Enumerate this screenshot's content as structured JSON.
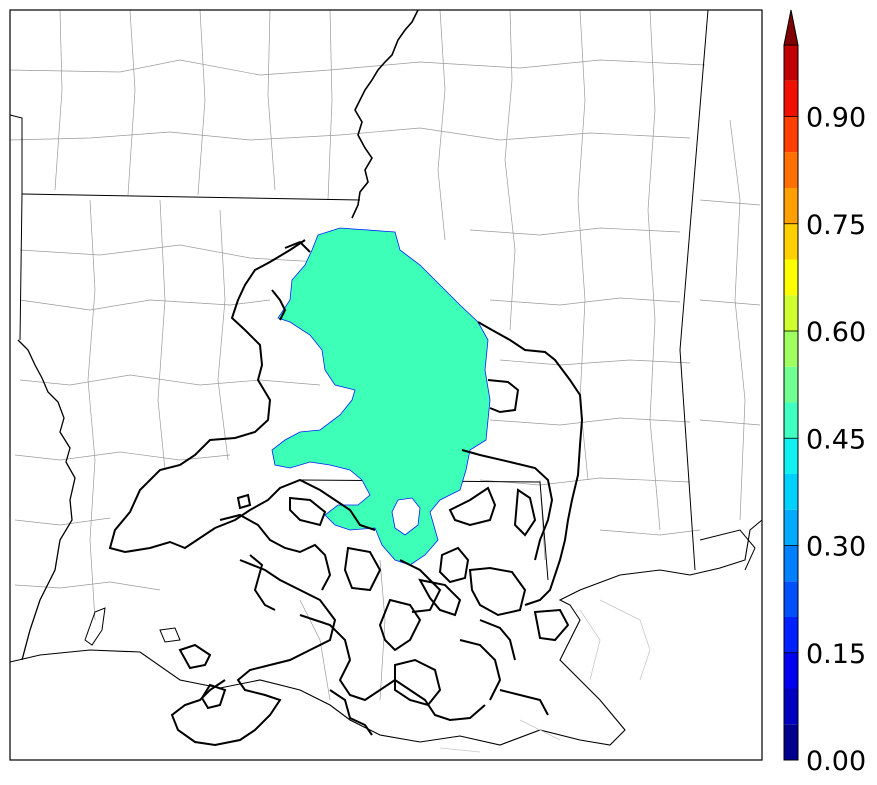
{
  "map": {
    "type": "probability-map",
    "region": "Louisiana / Mississippi",
    "fill_color": "#3dffb8",
    "contour_color": "#000000"
  },
  "colorbar": {
    "min": 0.0,
    "max": 1.0,
    "step": 0.05,
    "extend": "max",
    "tick_labels": [
      "0.00",
      "0.15",
      "0.30",
      "0.45",
      "0.60",
      "0.75",
      "0.90"
    ],
    "colors": [
      "#00008f",
      "#0000c0",
      "#0000f0",
      "#0020ff",
      "#0050ff",
      "#0080ff",
      "#00aaff",
      "#00d0ff",
      "#10f0f0",
      "#40ffc0",
      "#70ff90",
      "#a0ff60",
      "#d0ff30",
      "#ffff00",
      "#ffd000",
      "#ffa000",
      "#ff7000",
      "#ff4000",
      "#f01000",
      "#c00000"
    ],
    "extend_color": "#800000"
  }
}
